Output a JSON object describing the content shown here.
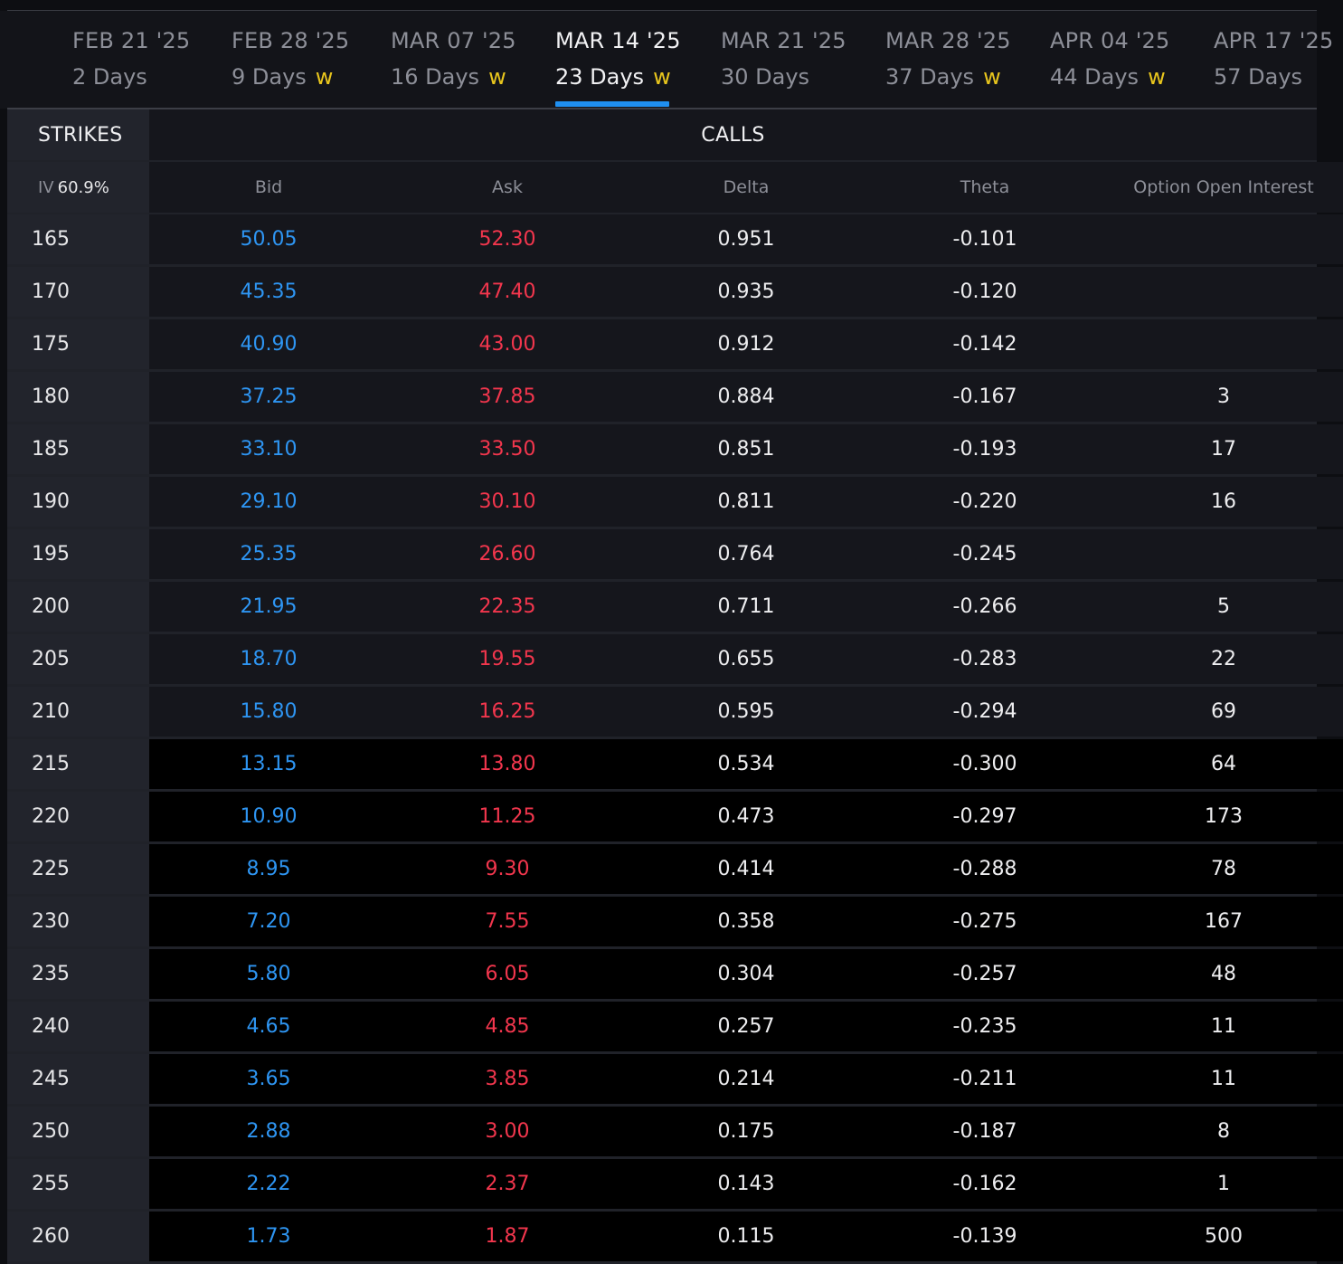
{
  "expirations": [
    {
      "date": "FEB 21 '25",
      "days": "2 Days",
      "weekly": ""
    },
    {
      "date": "FEB 28 '25",
      "days": "9 Days",
      "weekly": "w"
    },
    {
      "date": "MAR 07 '25",
      "days": "16 Days",
      "weekly": "w"
    },
    {
      "date": "MAR 14 '25",
      "days": "23 Days",
      "weekly": "w",
      "active": true
    },
    {
      "date": "MAR 21 '25",
      "days": "30 Days",
      "weekly": ""
    },
    {
      "date": "MAR 28 '25",
      "days": "37 Days",
      "weekly": "w"
    },
    {
      "date": "APR 04 '25",
      "days": "44 Days",
      "weekly": "w"
    },
    {
      "date": "APR 17 '25",
      "days": "57 Days",
      "weekly": ""
    }
  ],
  "header": {
    "strikes_label": "STRIKES",
    "calls_label": "CALLS",
    "iv_label": "IV",
    "iv_value": "60.9%",
    "columns": {
      "bid": "Bid",
      "ask": "Ask",
      "delta": "Delta",
      "theta": "Theta",
      "oi": "Option Open Interest"
    }
  },
  "colors": {
    "bid": "#2e95f2",
    "ask": "#f2364d",
    "weekly_badge": "#e9c61d",
    "active_underline": "#1f8ff0",
    "itm_row_bg": "#15161c",
    "otm_row_bg": "#000000"
  },
  "rows": [
    {
      "strike": "165",
      "bid": "50.05",
      "ask": "52.30",
      "delta": "0.951",
      "theta": "-0.101",
      "oi": "",
      "itm": true
    },
    {
      "strike": "170",
      "bid": "45.35",
      "ask": "47.40",
      "delta": "0.935",
      "theta": "-0.120",
      "oi": "",
      "itm": true
    },
    {
      "strike": "175",
      "bid": "40.90",
      "ask": "43.00",
      "delta": "0.912",
      "theta": "-0.142",
      "oi": "",
      "itm": true
    },
    {
      "strike": "180",
      "bid": "37.25",
      "ask": "37.85",
      "delta": "0.884",
      "theta": "-0.167",
      "oi": "3",
      "itm": true
    },
    {
      "strike": "185",
      "bid": "33.10",
      "ask": "33.50",
      "delta": "0.851",
      "theta": "-0.193",
      "oi": "17",
      "itm": true
    },
    {
      "strike": "190",
      "bid": "29.10",
      "ask": "30.10",
      "delta": "0.811",
      "theta": "-0.220",
      "oi": "16",
      "itm": true
    },
    {
      "strike": "195",
      "bid": "25.35",
      "ask": "26.60",
      "delta": "0.764",
      "theta": "-0.245",
      "oi": "",
      "itm": true
    },
    {
      "strike": "200",
      "bid": "21.95",
      "ask": "22.35",
      "delta": "0.711",
      "theta": "-0.266",
      "oi": "5",
      "itm": true
    },
    {
      "strike": "205",
      "bid": "18.70",
      "ask": "19.55",
      "delta": "0.655",
      "theta": "-0.283",
      "oi": "22",
      "itm": true
    },
    {
      "strike": "210",
      "bid": "15.80",
      "ask": "16.25",
      "delta": "0.595",
      "theta": "-0.294",
      "oi": "69",
      "itm": true
    },
    {
      "strike": "215",
      "bid": "13.15",
      "ask": "13.80",
      "delta": "0.534",
      "theta": "-0.300",
      "oi": "64",
      "itm": false
    },
    {
      "strike": "220",
      "bid": "10.90",
      "ask": "11.25",
      "delta": "0.473",
      "theta": "-0.297",
      "oi": "173",
      "itm": false
    },
    {
      "strike": "225",
      "bid": "8.95",
      "ask": "9.30",
      "delta": "0.414",
      "theta": "-0.288",
      "oi": "78",
      "itm": false
    },
    {
      "strike": "230",
      "bid": "7.20",
      "ask": "7.55",
      "delta": "0.358",
      "theta": "-0.275",
      "oi": "167",
      "itm": false
    },
    {
      "strike": "235",
      "bid": "5.80",
      "ask": "6.05",
      "delta": "0.304",
      "theta": "-0.257",
      "oi": "48",
      "itm": false
    },
    {
      "strike": "240",
      "bid": "4.65",
      "ask": "4.85",
      "delta": "0.257",
      "theta": "-0.235",
      "oi": "11",
      "itm": false
    },
    {
      "strike": "245",
      "bid": "3.65",
      "ask": "3.85",
      "delta": "0.214",
      "theta": "-0.211",
      "oi": "11",
      "itm": false
    },
    {
      "strike": "250",
      "bid": "2.88",
      "ask": "3.00",
      "delta": "0.175",
      "theta": "-0.187",
      "oi": "8",
      "itm": false
    },
    {
      "strike": "255",
      "bid": "2.22",
      "ask": "2.37",
      "delta": "0.143",
      "theta": "-0.162",
      "oi": "1",
      "itm": false
    },
    {
      "strike": "260",
      "bid": "1.73",
      "ask": "1.87",
      "delta": "0.115",
      "theta": "-0.139",
      "oi": "500",
      "itm": false
    }
  ]
}
